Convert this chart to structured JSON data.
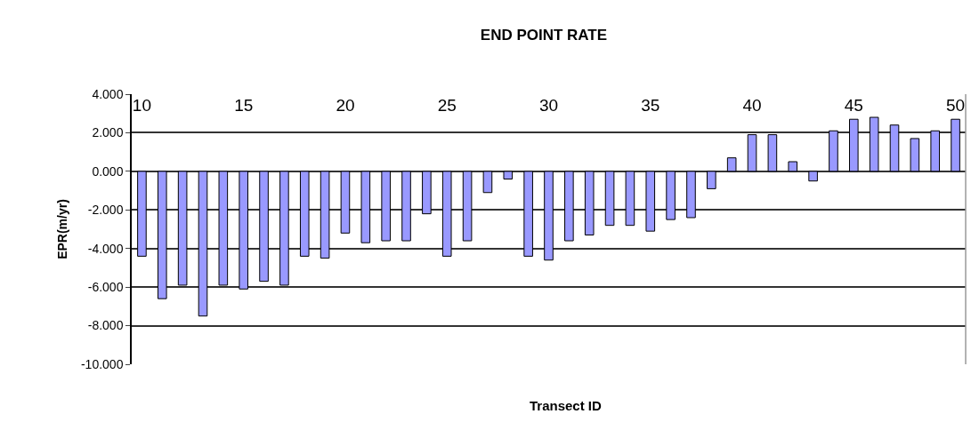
{
  "chart_data": {
    "type": "bar",
    "title": "END POINT RATE",
    "xlabel": "Transect ID",
    "ylabel": "EPR(m/yr)",
    "categories": [
      "10",
      null,
      null,
      null,
      null,
      "15",
      null,
      null,
      null,
      null,
      "20",
      null,
      null,
      null,
      null,
      "25",
      null,
      null,
      null,
      null,
      "30",
      null,
      null,
      null,
      null,
      "35",
      null,
      null,
      null,
      null,
      "40",
      null,
      null,
      null,
      null,
      "45",
      null,
      null,
      null,
      null,
      "50"
    ],
    "values": [
      -4.4,
      -6.6,
      -5.9,
      -7.5,
      -5.9,
      -6.1,
      -5.7,
      -5.9,
      -4.4,
      -4.5,
      -3.2,
      -3.7,
      -3.6,
      -3.6,
      -2.2,
      -4.4,
      -3.6,
      -1.1,
      -0.4,
      -4.4,
      -4.6,
      -3.6,
      -3.3,
      -2.8,
      -2.8,
      -3.1,
      -2.5,
      -2.4,
      -0.9,
      0.7,
      1.9,
      1.9,
      0.5,
      -0.5,
      2.1,
      2.7,
      2.8,
      2.4,
      1.7,
      2.1,
      2.7
    ],
    "color": "#9999ff",
    "ylim": [
      -10,
      4
    ],
    "yticks": [
      {
        "value": -10,
        "label": "-10.000"
      },
      {
        "value": -8,
        "label": "-8.000"
      },
      {
        "value": -6,
        "label": "-6.000"
      },
      {
        "value": -4,
        "label": "-4.000"
      },
      {
        "value": -2,
        "label": "-2.000"
      },
      {
        "value": 0,
        "label": "0.000"
      },
      {
        "value": 2,
        "label": "2.000"
      },
      {
        "value": 4,
        "label": "4.000"
      }
    ],
    "grid": "y"
  }
}
